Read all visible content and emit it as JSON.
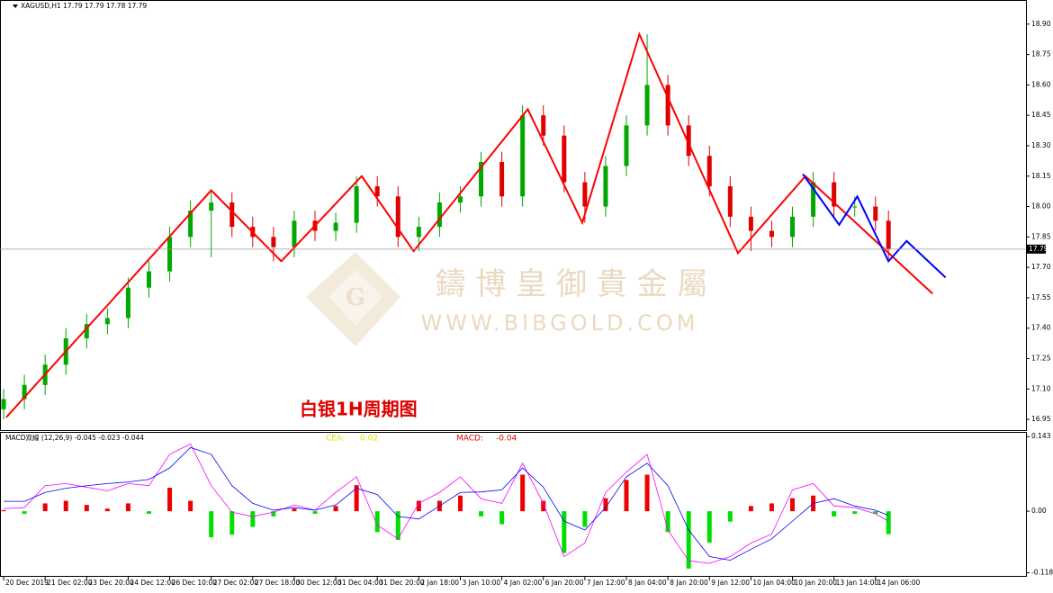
{
  "chart_data": [
    {
      "type": "candlestick",
      "subtitle": "XAGUSD,H1  17.79 17.79 17.78 17.79",
      "title": "白银1H周期图",
      "watermark": [
        "鑄 博 皇 御 貴 金 屬",
        "WWW.BIBGOLD.COM"
      ],
      "last_price": 17.79,
      "up_color": "#00a800",
      "down_color": "#e00000",
      "x": [
        0,
        8,
        16,
        24,
        32,
        40,
        48,
        56,
        64,
        72,
        80,
        88,
        96,
        104,
        112,
        120,
        128,
        136,
        144,
        152,
        160,
        168,
        176,
        184,
        192,
        200,
        208,
        216,
        224,
        232,
        240,
        248,
        256,
        264,
        272,
        280,
        288,
        296,
        304,
        312,
        320,
        328,
        336,
        341
      ],
      "open": [
        17.0,
        17.05,
        17.12,
        17.22,
        17.35,
        17.42,
        17.45,
        17.6,
        17.68,
        17.85,
        17.98,
        18.02,
        17.9,
        17.85,
        17.8,
        17.93,
        17.88,
        17.92,
        18.1,
        18.05,
        17.85,
        17.9,
        18.02,
        18.05,
        18.22,
        18.05,
        18.45,
        18.35,
        18.12,
        18.0,
        18.2,
        18.4,
        18.6,
        18.4,
        18.25,
        18.1,
        17.95,
        17.88,
        17.85,
        17.95,
        18.12,
        18.0,
        18.0,
        17.93
      ],
      "high": [
        17.1,
        17.17,
        17.27,
        17.4,
        17.47,
        17.5,
        17.65,
        17.73,
        17.9,
        18.03,
        18.07,
        18.07,
        17.95,
        17.9,
        17.98,
        17.98,
        17.97,
        18.15,
        18.15,
        18.1,
        17.95,
        18.07,
        18.1,
        18.27,
        18.27,
        18.5,
        18.5,
        18.4,
        18.17,
        18.25,
        18.45,
        18.85,
        18.65,
        18.45,
        18.3,
        18.15,
        18.0,
        17.93,
        18.0,
        18.17,
        18.17,
        18.05,
        18.05,
        17.98
      ],
      "low": [
        16.95,
        17.0,
        17.07,
        17.17,
        17.3,
        17.37,
        17.4,
        17.55,
        17.63,
        17.8,
        17.75,
        17.85,
        17.8,
        17.73,
        17.75,
        17.83,
        17.83,
        17.87,
        18.0,
        17.8,
        17.78,
        17.85,
        17.97,
        18.0,
        18.0,
        18.0,
        18.3,
        18.07,
        17.92,
        17.95,
        18.15,
        18.35,
        18.35,
        18.2,
        18.05,
        17.9,
        17.78,
        17.8,
        17.8,
        17.9,
        17.95,
        17.95,
        17.88,
        17.74
      ],
      "close": [
        17.05,
        17.12,
        17.22,
        17.35,
        17.42,
        17.45,
        17.6,
        17.68,
        17.85,
        17.98,
        18.02,
        17.9,
        17.85,
        17.8,
        17.93,
        17.88,
        17.92,
        18.1,
        18.05,
        17.85,
        17.9,
        18.02,
        18.05,
        18.22,
        18.05,
        18.45,
        18.35,
        18.12,
        18.0,
        18.2,
        18.4,
        18.6,
        18.4,
        18.25,
        18.1,
        17.95,
        17.88,
        17.85,
        17.95,
        18.12,
        18.0,
        18.0,
        17.93,
        17.79
      ],
      "lines": [
        {
          "color": "#ff0000",
          "x": [
            1,
            80,
            107,
            138,
            158,
            202,
            223,
            245,
            283,
            309,
            358
          ],
          "values": [
            16.96,
            18.08,
            17.73,
            18.15,
            17.78,
            18.48,
            17.92,
            18.85,
            17.77,
            18.15,
            17.57
          ]
        },
        {
          "color": "#0000ff",
          "x": [
            308,
            322,
            329,
            341,
            348,
            363
          ],
          "values": [
            18.16,
            17.91,
            18.05,
            17.73,
            17.83,
            17.65
          ]
        }
      ],
      "xlim": [
        -1.4,
        394
      ],
      "ylim": [
        16.897,
        19.019
      ],
      "yticks": [
        {
          "value": 18.9,
          "label": "18.90"
        },
        18.75,
        {
          "value": 18.6,
          "label": "18.60"
        },
        18.45,
        {
          "value": 18.3,
          "label": "18.30"
        },
        18.15,
        {
          "value": 18,
          "label": "18.00"
        },
        17.85,
        {
          "value": 17.7,
          "label": "17.70"
        },
        17.55,
        {
          "value": 17.4,
          "label": "17.40"
        },
        17.25,
        {
          "value": 17.1,
          "label": "17.10"
        },
        16.95
      ],
      "xticks": [
        {
          "value": 0,
          "label": "20 Dec 2019"
        },
        {
          "value": 16,
          "label": "21 Dec 02:00"
        },
        {
          "value": 32,
          "label": "23 Dec 20:00"
        },
        {
          "value": 48,
          "label": "24 Dec 12:00"
        },
        {
          "value": 64,
          "label": "26 Dec 10:00"
        },
        {
          "value": 80,
          "label": "27 Dec 02:00"
        },
        {
          "value": 96,
          "label": "27 Dec 18:00"
        },
        {
          "value": 112,
          "label": "30 Dec 12:00"
        },
        {
          "value": 128,
          "label": "31 Dec 04:00"
        },
        {
          "value": 144,
          "label": "31 Dec 20:00"
        },
        {
          "value": 160,
          "label": "2 Jan 18:00"
        },
        {
          "value": 176,
          "label": "3 Jan 10:00"
        },
        {
          "value": 192,
          "label": "4 Jan 02:00"
        },
        {
          "value": 208,
          "label": "6 Jan 20:00"
        },
        {
          "value": 224,
          "label": "7 Jan 12:00"
        },
        {
          "value": 240,
          "label": "8 Jan 04:00"
        },
        {
          "value": 256,
          "label": "8 Jan 20:00"
        },
        {
          "value": 272,
          "label": "9 Jan 12:00"
        },
        {
          "value": 288,
          "label": "10 Jan 04:00"
        },
        {
          "value": 304,
          "label": "10 Jan 20:00"
        },
        {
          "value": 320,
          "label": "13 Jan 14:00"
        },
        {
          "value": 336,
          "label": "14 Jan 06:00"
        }
      ]
    },
    {
      "type": "macd",
      "subtitle": "MACD双線 (12,26,9) -0.045 -0.023 -0.044",
      "readout": [
        {
          "text": "CEA:",
          "color": "#e0e000"
        },
        {
          "text": "0.02",
          "color": "#e0e000"
        },
        {
          "text": "MACD:",
          "color": "#e00000"
        },
        {
          "text": "-0.04",
          "color": "#e00000"
        }
      ],
      "up_color": "#ee0000",
      "down_color": "#00e000",
      "x": [
        0,
        8,
        16,
        24,
        32,
        40,
        48,
        56,
        64,
        72,
        80,
        88,
        96,
        104,
        112,
        120,
        128,
        136,
        144,
        152,
        160,
        168,
        176,
        184,
        192,
        200,
        208,
        216,
        224,
        232,
        240,
        248,
        256,
        264,
        272,
        280,
        288,
        296,
        304,
        312,
        320,
        328,
        336,
        341
      ],
      "values": [
        0.002,
        -0.005,
        0.015,
        0.02,
        0.012,
        0.005,
        0.015,
        -0.005,
        0.045,
        0.02,
        -0.05,
        -0.045,
        -0.03,
        -0.01,
        0.005,
        -0.005,
        0.01,
        0.05,
        -0.04,
        -0.055,
        0.02,
        0.02,
        0.03,
        -0.01,
        -0.025,
        0.07,
        0.02,
        -0.08,
        -0.03,
        0.025,
        0.06,
        0.07,
        -0.04,
        -0.11,
        -0.06,
        -0.02,
        0.01,
        0.015,
        0.025,
        0.03,
        -0.01,
        -0.005,
        -0.005,
        -0.044
      ],
      "series": [
        {
          "color": "#ff00ff",
          "values": [
            0.005,
            0.007,
            0.049,
            0.053,
            0.046,
            0.039,
            0.053,
            0.049,
            0.109,
            0.129,
            0.049,
            -0.002,
            -0.01,
            -0.002,
            0.012,
            0.002,
            0.036,
            0.066,
            -0.027,
            -0.053,
            0.015,
            0.036,
            0.066,
            0.024,
            0.015,
            0.092,
            0.015,
            -0.087,
            -0.061,
            0.036,
            0.075,
            0.109,
            -0.036,
            -0.095,
            -0.1,
            -0.087,
            -0.061,
            -0.044,
            0.041,
            0.053,
            0.01,
            0.007,
            -0.005,
            -0.019
          ]
        },
        {
          "color": "#0000ff",
          "values": [
            0.019,
            0.019,
            0.036,
            0.044,
            0.049,
            0.053,
            0.056,
            0.061,
            0.083,
            0.122,
            0.109,
            0.049,
            0.015,
            0.002,
            0.007,
            0.002,
            0.012,
            0.044,
            0.032,
            -0.01,
            -0.015,
            0.01,
            0.036,
            0.037,
            0.041,
            0.083,
            0.046,
            -0.019,
            -0.036,
            0.007,
            0.066,
            0.092,
            0.049,
            -0.036,
            -0.087,
            -0.094,
            -0.073,
            -0.053,
            -0.019,
            0.015,
            0.024,
            0.01,
            0.002,
            -0.008
          ]
        }
      ],
      "xlim": [
        -1.4,
        394
      ],
      "ylim": [
        -0.124,
        0.152
      ],
      "yticks": [
        0.143,
        {
          "value": 0,
          "label": "0.00"
        },
        -0.118
      ]
    }
  ]
}
